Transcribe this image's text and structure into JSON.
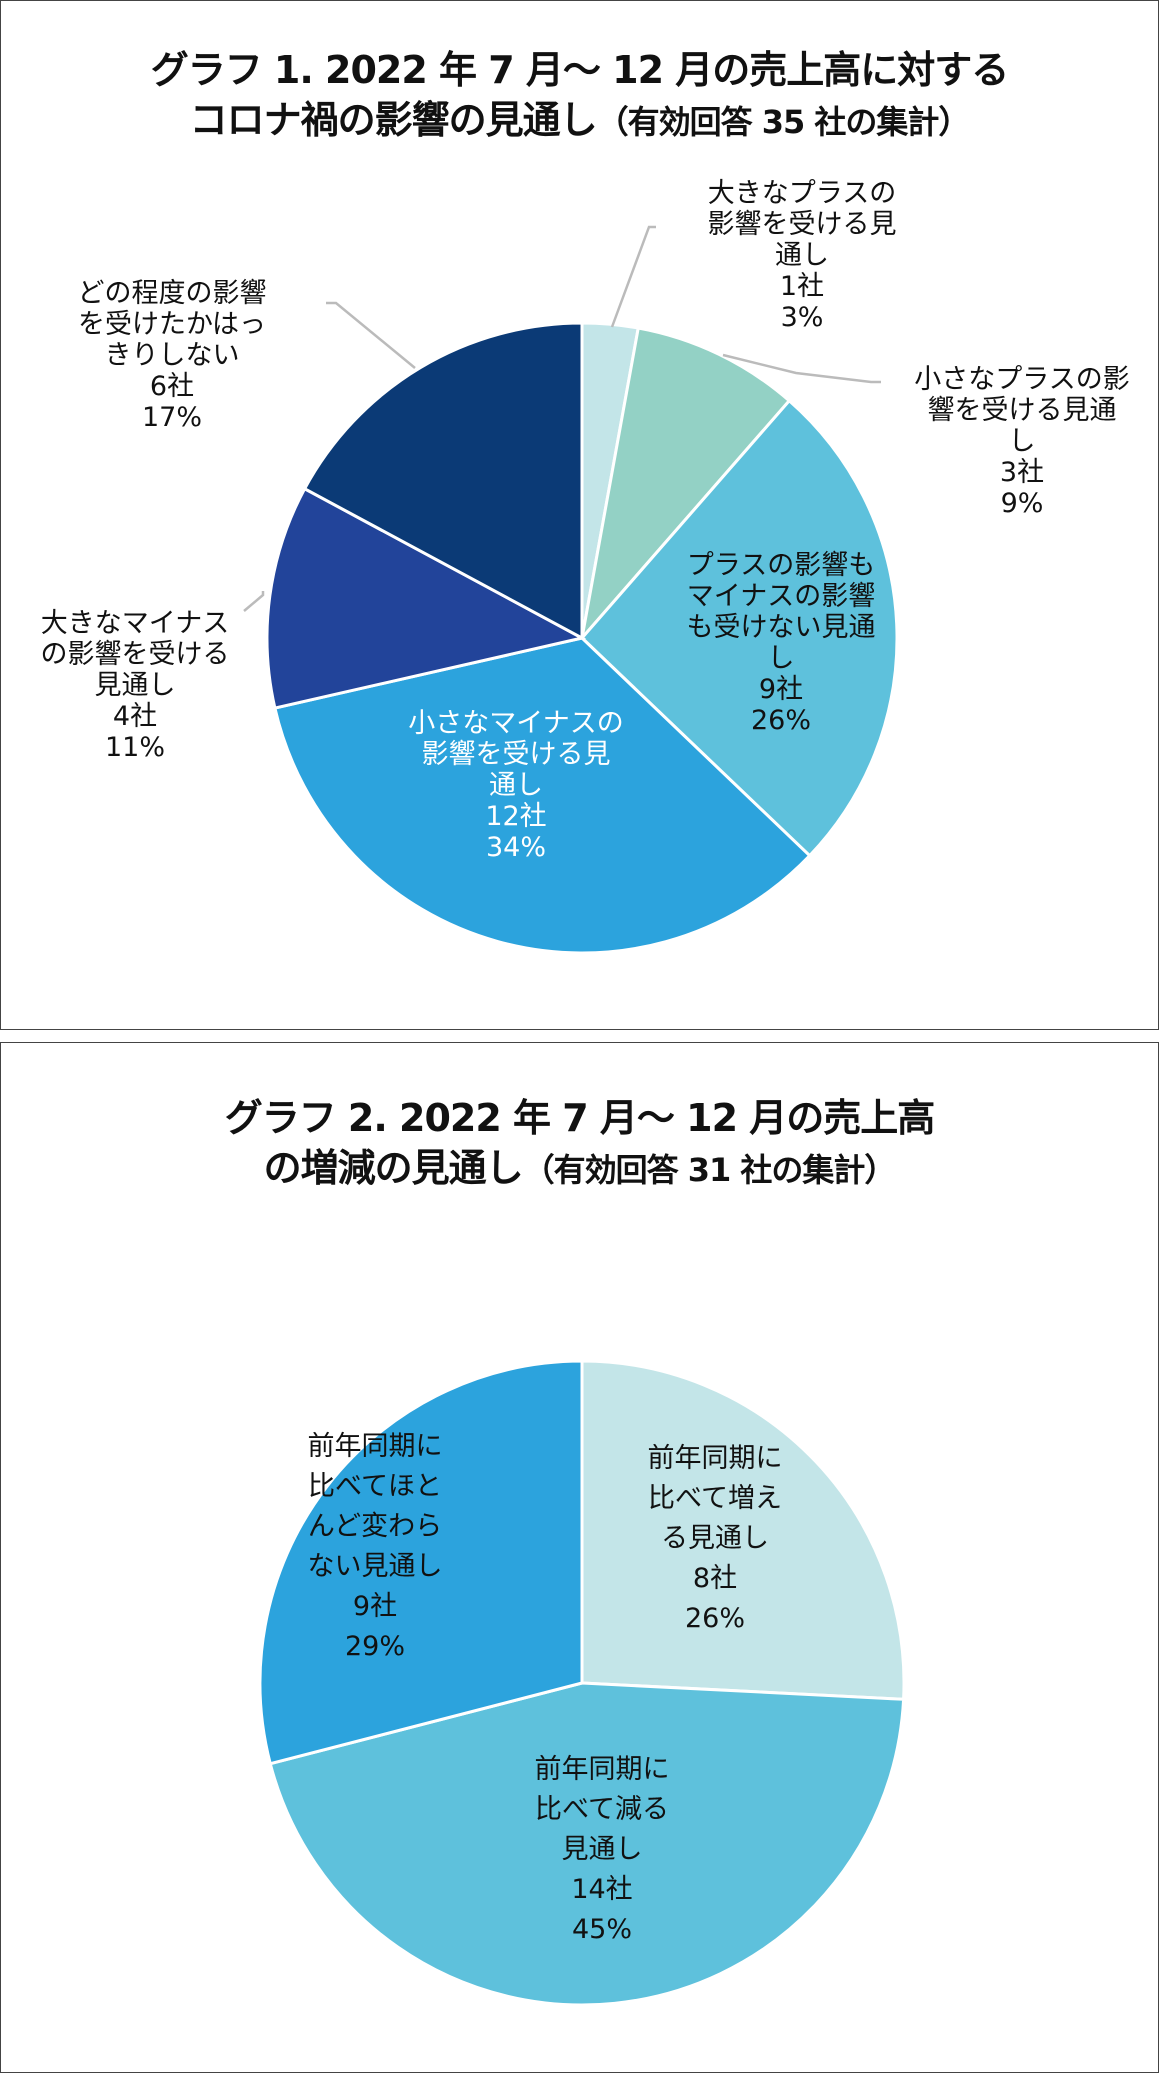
{
  "colors": {
    "white_text": "#ffffff",
    "dark_text": "#111111",
    "leader_line": "#bbbbbb",
    "slice_border": "#ffffff"
  },
  "chart_data": [
    {
      "type": "pie",
      "title_lines": [
        "グラフ 1. 2022 年 7 月～ 12 月の売上高に対する",
        "コロナ禍の影響の見通し"
      ],
      "subtitle": "（有効回答 35 社の集計）",
      "start": "12 o'clock, clockwise",
      "slices": [
        {
          "label_lines": [
            "大きなプラスの",
            "影響を受ける見",
            "通し"
          ],
          "count": "1社",
          "percent": "3%",
          "value": 1,
          "color": "#c3e5e8",
          "label_placement": "outside-top-right",
          "text_color": "#111111"
        },
        {
          "label_lines": [
            "小さなプラスの影",
            "響を受ける見通",
            "し"
          ],
          "count": "3社",
          "percent": "9%",
          "value": 3,
          "color": "#93d1c5",
          "label_placement": "outside-right",
          "text_color": "#111111"
        },
        {
          "label_lines": [
            "プラスの影響も",
            "マイナスの影響",
            "も受けない見通",
            "し"
          ],
          "count": "9社",
          "percent": "26%",
          "value": 9,
          "color": "#5ec1dc",
          "label_placement": "inside",
          "text_color": "#111111"
        },
        {
          "label_lines": [
            "小さなマイナスの",
            "影響を受ける見",
            "通し"
          ],
          "count": "12社",
          "percent": "34%",
          "value": 12,
          "color": "#2ca3dd",
          "label_placement": "inside",
          "text_color": "#ffffff"
        },
        {
          "label_lines": [
            "大きなマイナス",
            "の影響を受ける",
            "見通し"
          ],
          "count": "4社",
          "percent": "11%",
          "value": 4,
          "color": "#22449a",
          "label_placement": "outside-left",
          "text_color": "#111111"
        },
        {
          "label_lines": [
            "どの程度の影響",
            "を受けたかはっ",
            "きりしない"
          ],
          "count": "6社",
          "percent": "17%",
          "value": 6,
          "color": "#0b3a76",
          "label_placement": "outside-top-left",
          "text_color": "#111111"
        }
      ]
    },
    {
      "type": "pie",
      "title_lines": [
        "グラフ 2. 2022 年 7 月～ 12 月の売上高",
        "の増減の見通し"
      ],
      "subtitle": "（有効回答 31 社の集計）",
      "start": "12 o'clock, clockwise",
      "slices": [
        {
          "label_lines": [
            "前年同期に",
            "比べて増え",
            "る見通し"
          ],
          "count": "8社",
          "percent": "26%",
          "value": 8,
          "color": "#c3e5e8",
          "label_placement": "inside",
          "text_color": "#111111"
        },
        {
          "label_lines": [
            "前年同期に",
            "比べて減る",
            "見通し"
          ],
          "count": "14社",
          "percent": "45%",
          "value": 14,
          "color": "#5ec1dc",
          "label_placement": "inside",
          "text_color": "#111111"
        },
        {
          "label_lines": [
            "前年同期に",
            "比べてほと",
            "んど変わら",
            "ない見通し"
          ],
          "count": "9社",
          "percent": "29%",
          "value": 9,
          "color": "#2ca3dd",
          "label_placement": "inside",
          "text_color": "#111111"
        }
      ]
    }
  ]
}
